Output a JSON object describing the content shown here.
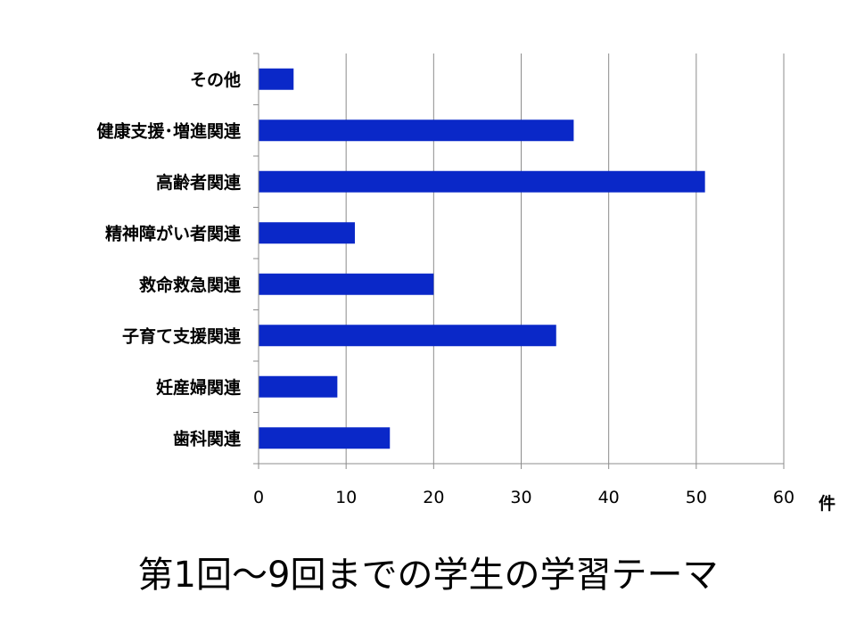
{
  "chart_data": {
    "type": "bar",
    "orientation": "horizontal",
    "categories": [
      "その他",
      "健康支援･増進関連",
      "高齢者関連",
      "精神障がい者関連",
      "救命救急関連",
      "子育て支援関連",
      "妊産婦関連",
      "歯科関連"
    ],
    "values": [
      4,
      36,
      51,
      11,
      20,
      34,
      9,
      15
    ],
    "xlim": [
      0,
      60
    ],
    "xticks": [
      0,
      10,
      20,
      30,
      40,
      50,
      60
    ],
    "x_unit": "件",
    "grid": "vertical",
    "bar_color": "#0a28c8",
    "title": "第1回～9回までの学生の学習テーマ"
  }
}
